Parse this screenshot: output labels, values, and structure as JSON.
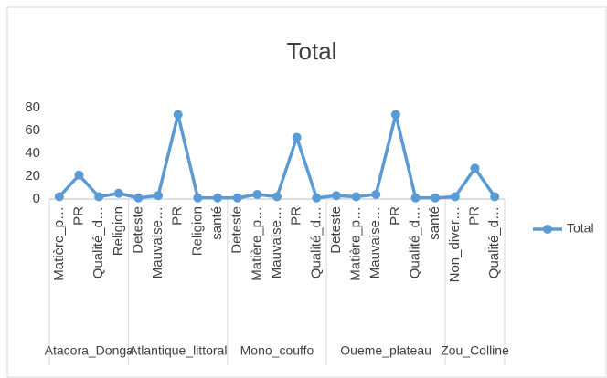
{
  "chart_data": {
    "type": "line",
    "title": "Total",
    "groups": [
      {
        "name": "Atacora_Donga",
        "categories": [
          "Matière_p…",
          "PR",
          "Qualité_d…",
          "Religion"
        ]
      },
      {
        "name": "Atlantique_littoral",
        "categories": [
          "Deteste",
          "Mauvaise…",
          "PR",
          "Religion",
          "santé"
        ]
      },
      {
        "name": "Mono_couffo",
        "categories": [
          "Deteste",
          "Matière_p…",
          "Mauvaise…",
          "PR",
          "Qualité_d…"
        ]
      },
      {
        "name": "Oueme_plateau",
        "categories": [
          "Deteste",
          "Matière_p…",
          "Mauvaise…",
          "PR",
          "Qualité_d…",
          "santé"
        ]
      },
      {
        "name": "Zou_Colline",
        "categories": [
          "Non_diver…",
          "PR",
          "Qualité_d…"
        ]
      }
    ],
    "series": [
      {
        "name": "Total",
        "color": "#5b9bd5",
        "values": [
          2,
          21,
          2,
          5,
          1,
          3,
          74,
          1,
          1,
          1,
          4,
          2,
          54,
          1,
          3,
          2,
          4,
          74,
          1,
          1,
          2,
          27,
          2
        ]
      }
    ],
    "ylim": [
      0,
      80
    ],
    "yticks": [
      0,
      20,
      40,
      60,
      80
    ],
    "grid": false,
    "legend": "right"
  }
}
